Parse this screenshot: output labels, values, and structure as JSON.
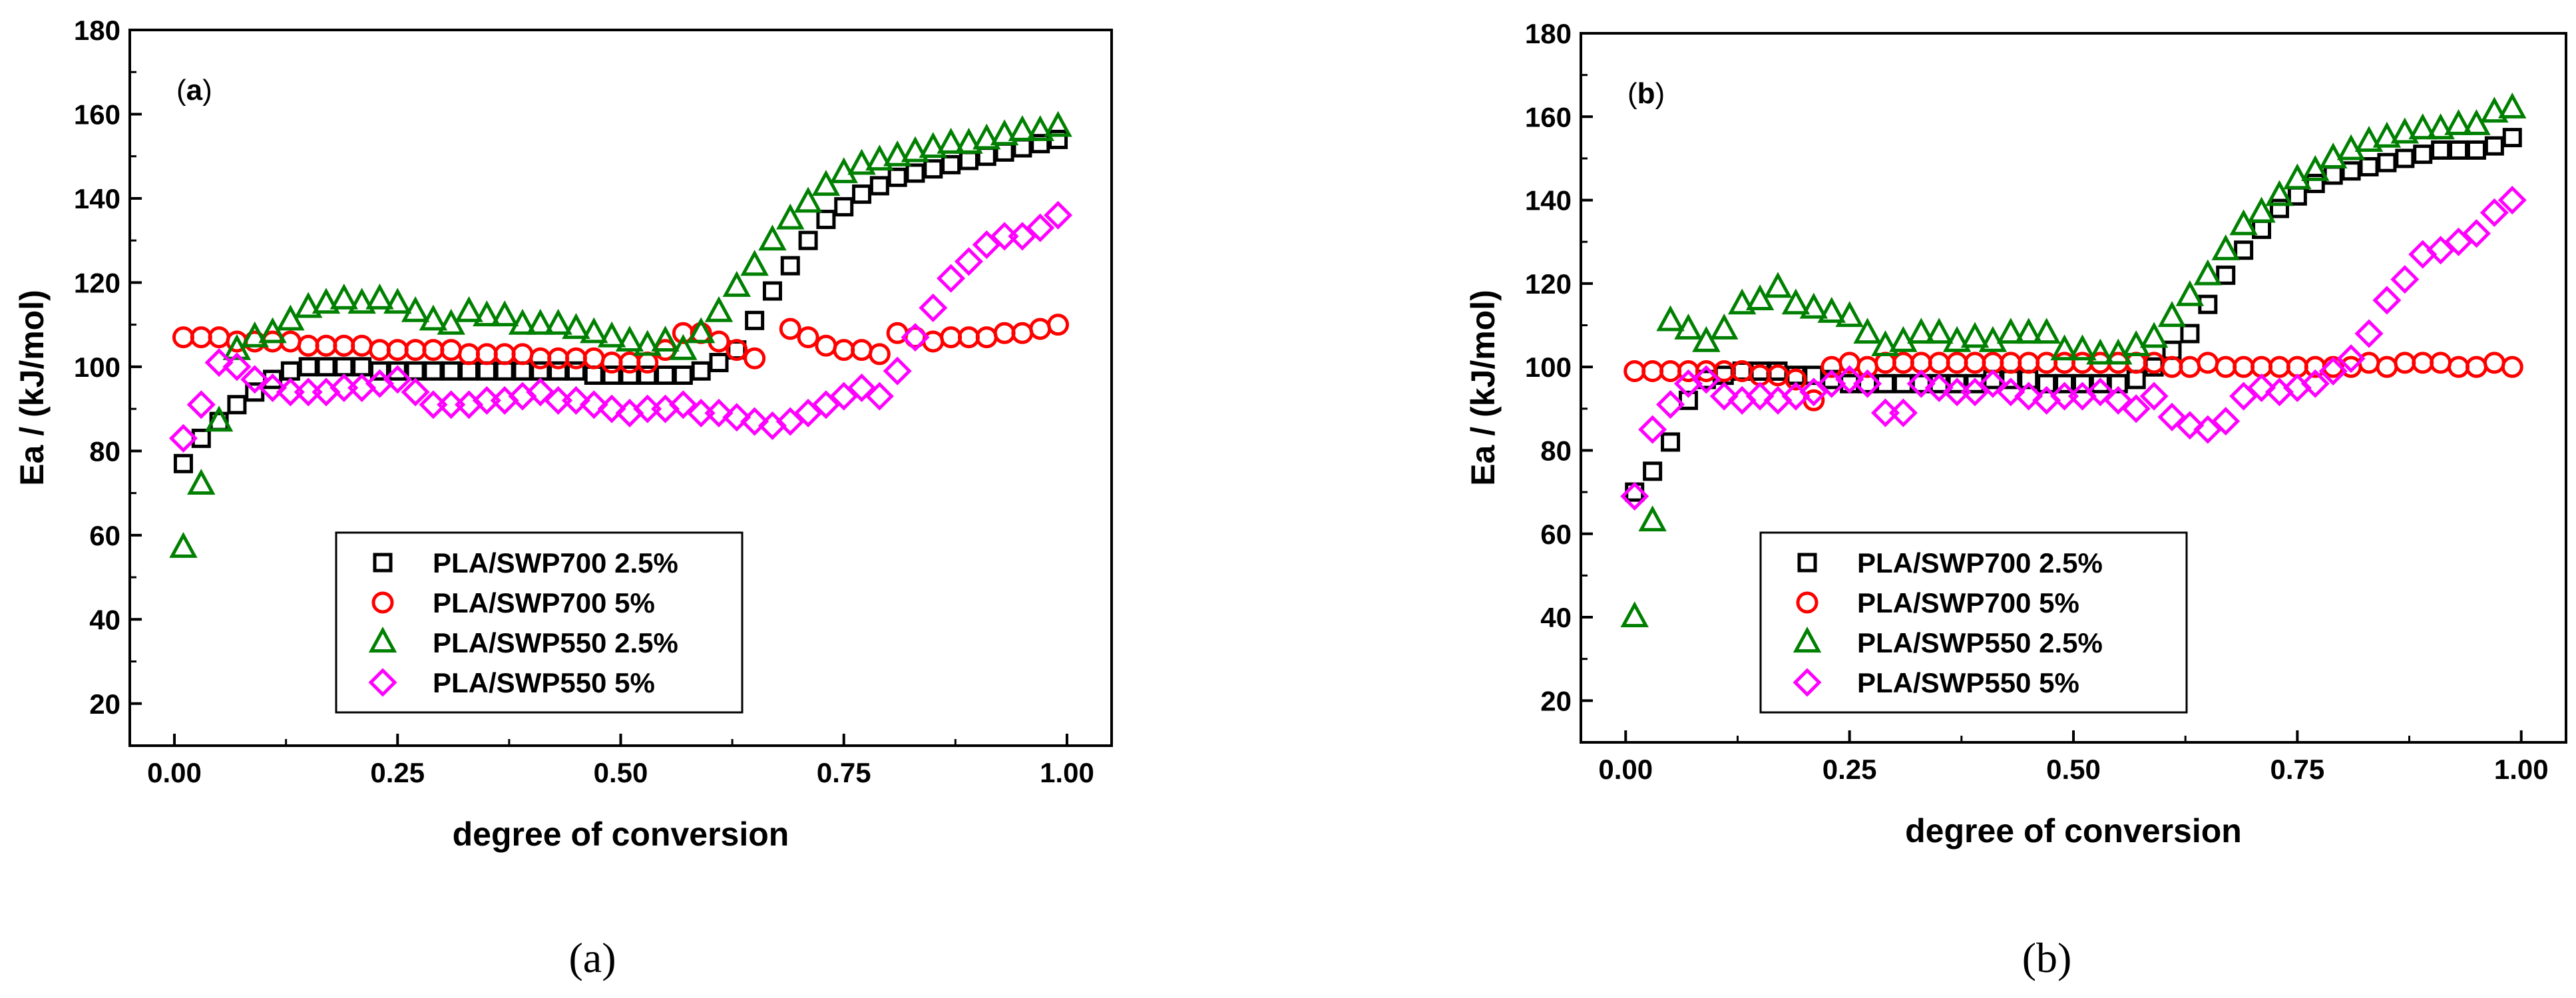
{
  "chart_data": [
    {
      "type": "scatter",
      "panel_label": "(a)",
      "caption": "(a)",
      "xlabel": "degree of conversion",
      "ylabel": "Ea / (kJ/mol)",
      "xlim": [
        -0.05,
        1.05
      ],
      "ylim": [
        10,
        180
      ],
      "xticks": [
        "0.00",
        "0.25",
        "0.50",
        "0.75",
        "1.00"
      ],
      "xtick_values": [
        0,
        0.25,
        0.5,
        0.75,
        1.0
      ],
      "yticks": [
        "20",
        "40",
        "60",
        "80",
        "100",
        "120",
        "140",
        "160",
        "180"
      ],
      "ytick_values": [
        20,
        40,
        60,
        80,
        100,
        120,
        140,
        160,
        180
      ],
      "legend_position": "lower-center",
      "series": [
        {
          "name": "PLA/SWP700 2.5%",
          "marker": "square",
          "color": "#000000",
          "x": [
            0.01,
            0.03,
            0.05,
            0.07,
            0.09,
            0.11,
            0.13,
            0.15,
            0.17,
            0.19,
            0.21,
            0.23,
            0.25,
            0.27,
            0.29,
            0.31,
            0.33,
            0.35,
            0.37,
            0.39,
            0.41,
            0.43,
            0.45,
            0.47,
            0.49,
            0.51,
            0.53,
            0.55,
            0.57,
            0.59,
            0.61,
            0.63,
            0.65,
            0.67,
            0.69,
            0.71,
            0.73,
            0.75,
            0.77,
            0.79,
            0.81,
            0.83,
            0.85,
            0.87,
            0.89,
            0.91,
            0.93,
            0.95,
            0.97,
            0.99
          ],
          "y": [
            77,
            83,
            87,
            91,
            94,
            97,
            99,
            100,
            100,
            100,
            100,
            99,
            99,
            99,
            99,
            99,
            99,
            99,
            99,
            99,
            99,
            99,
            99,
            98,
            98,
            98,
            98,
            98,
            98,
            99,
            101,
            104,
            111,
            118,
            124,
            130,
            135,
            138,
            141,
            143,
            145,
            146,
            147,
            148,
            149,
            150,
            151,
            152,
            153,
            154
          ]
        },
        {
          "name": "PLA/SWP700 5%",
          "marker": "circle",
          "color": "#ff0000",
          "x": [
            0.01,
            0.03,
            0.05,
            0.07,
            0.09,
            0.11,
            0.13,
            0.15,
            0.17,
            0.19,
            0.21,
            0.23,
            0.25,
            0.27,
            0.29,
            0.31,
            0.33,
            0.35,
            0.37,
            0.39,
            0.41,
            0.43,
            0.45,
            0.47,
            0.49,
            0.51,
            0.53,
            0.55,
            0.57,
            0.59,
            0.61,
            0.63,
            0.65,
            0.69,
            0.71,
            0.73,
            0.75,
            0.77,
            0.79,
            0.81,
            0.83,
            0.85,
            0.87,
            0.89,
            0.91,
            0.93,
            0.95,
            0.97,
            0.99
          ],
          "y": [
            107,
            107,
            107,
            106,
            106,
            106,
            106,
            105,
            105,
            105,
            105,
            104,
            104,
            104,
            104,
            104,
            103,
            103,
            103,
            103,
            102,
            102,
            102,
            102,
            101,
            101,
            101,
            104,
            108,
            108,
            106,
            104,
            102,
            109,
            107,
            105,
            104,
            104,
            103,
            108,
            107,
            106,
            107,
            107,
            107,
            108,
            108,
            109,
            110
          ]
        },
        {
          "name": "PLA/SWP550 2.5%",
          "marker": "triangle",
          "color": "#008000",
          "x": [
            0.01,
            0.03,
            0.05,
            0.07,
            0.09,
            0.11,
            0.13,
            0.15,
            0.17,
            0.19,
            0.21,
            0.23,
            0.25,
            0.27,
            0.29,
            0.31,
            0.33,
            0.35,
            0.37,
            0.39,
            0.41,
            0.43,
            0.45,
            0.47,
            0.49,
            0.51,
            0.53,
            0.55,
            0.57,
            0.59,
            0.61,
            0.63,
            0.65,
            0.67,
            0.69,
            0.71,
            0.73,
            0.75,
            0.77,
            0.79,
            0.81,
            0.83,
            0.85,
            0.87,
            0.89,
            0.91,
            0.93,
            0.95,
            0.97,
            0.99
          ],
          "y": [
            57,
            72,
            87,
            104,
            107,
            108,
            111,
            114,
            115,
            116,
            115,
            116,
            115,
            113,
            111,
            110,
            113,
            112,
            112,
            110,
            110,
            110,
            109,
            108,
            107,
            106,
            105,
            106,
            104,
            108,
            113,
            119,
            124,
            130,
            135,
            139,
            143,
            146,
            148,
            149,
            150,
            151,
            152,
            153,
            153,
            154,
            155,
            156,
            156,
            157
          ]
        },
        {
          "name": "PLA/SWP550 5%",
          "marker": "diamond",
          "color": "#ff00ff",
          "x": [
            0.01,
            0.03,
            0.05,
            0.07,
            0.09,
            0.11,
            0.13,
            0.15,
            0.17,
            0.19,
            0.21,
            0.23,
            0.25,
            0.27,
            0.29,
            0.31,
            0.33,
            0.35,
            0.37,
            0.39,
            0.41,
            0.43,
            0.45,
            0.47,
            0.49,
            0.51,
            0.53,
            0.55,
            0.57,
            0.59,
            0.61,
            0.63,
            0.65,
            0.67,
            0.69,
            0.71,
            0.73,
            0.75,
            0.77,
            0.79,
            0.81,
            0.83,
            0.85,
            0.87,
            0.89,
            0.91,
            0.93,
            0.95,
            0.97,
            0.99
          ],
          "y": [
            83,
            91,
            101,
            100,
            97,
            95,
            94,
            94,
            94,
            95,
            95,
            96,
            97,
            94,
            91,
            91,
            91,
            92,
            92,
            93,
            94,
            92,
            92,
            91,
            90,
            89,
            90,
            90,
            91,
            89,
            89,
            88,
            87,
            86,
            87,
            89,
            91,
            93,
            95,
            93,
            99,
            107,
            114,
            121,
            125,
            129,
            131,
            131,
            133,
            136
          ]
        }
      ]
    },
    {
      "type": "scatter",
      "panel_label": "(b)",
      "caption": "(b)",
      "xlabel": "degree of conversion",
      "ylabel": "Ea / (kJ/mol)",
      "xlim": [
        -0.05,
        1.05
      ],
      "ylim": [
        10,
        180
      ],
      "xticks": [
        "0.00",
        "0.25",
        "0.50",
        "0.75",
        "1.00"
      ],
      "xtick_values": [
        0,
        0.25,
        0.5,
        0.75,
        1.0
      ],
      "yticks": [
        "20",
        "40",
        "60",
        "80",
        "100",
        "120",
        "140",
        "160",
        "180"
      ],
      "ytick_values": [
        20,
        40,
        60,
        80,
        100,
        120,
        140,
        160,
        180
      ],
      "legend_position": "lower-center",
      "series": [
        {
          "name": "PLA/SWP700 2.5%",
          "marker": "square",
          "color": "#000000",
          "x": [
            0.01,
            0.03,
            0.05,
            0.07,
            0.09,
            0.11,
            0.13,
            0.15,
            0.17,
            0.19,
            0.21,
            0.23,
            0.25,
            0.27,
            0.29,
            0.31,
            0.33,
            0.35,
            0.37,
            0.39,
            0.41,
            0.43,
            0.45,
            0.47,
            0.49,
            0.51,
            0.53,
            0.55,
            0.57,
            0.59,
            0.61,
            0.63,
            0.65,
            0.67,
            0.69,
            0.71,
            0.73,
            0.75,
            0.77,
            0.79,
            0.81,
            0.83,
            0.85,
            0.87,
            0.89,
            0.91,
            0.93,
            0.95,
            0.97,
            0.99
          ],
          "y": [
            70,
            75,
            82,
            92,
            97,
            98,
            99,
            99,
            99,
            98,
            98,
            97,
            96,
            96,
            96,
            96,
            96,
            96,
            96,
            96,
            97,
            97,
            97,
            96,
            96,
            96,
            96,
            96,
            97,
            100,
            104,
            108,
            115,
            122,
            128,
            133,
            138,
            141,
            144,
            146,
            147,
            148,
            149,
            150,
            151,
            152,
            152,
            152,
            153,
            155
          ]
        },
        {
          "name": "PLA/SWP700 5%",
          "marker": "circle",
          "color": "#ff0000",
          "x": [
            0.01,
            0.03,
            0.05,
            0.07,
            0.09,
            0.11,
            0.13,
            0.15,
            0.17,
            0.19,
            0.21,
            0.23,
            0.25,
            0.27,
            0.29,
            0.31,
            0.33,
            0.35,
            0.37,
            0.39,
            0.41,
            0.43,
            0.45,
            0.47,
            0.49,
            0.51,
            0.53,
            0.55,
            0.57,
            0.59,
            0.61,
            0.63,
            0.65,
            0.67,
            0.69,
            0.71,
            0.73,
            0.75,
            0.77,
            0.79,
            0.81,
            0.83,
            0.85,
            0.87,
            0.89,
            0.91,
            0.93,
            0.95,
            0.97,
            0.99
          ],
          "y": [
            99,
            99,
            99,
            99,
            99,
            99,
            99,
            98,
            98,
            97,
            92,
            100,
            101,
            100,
            101,
            101,
            101,
            101,
            101,
            101,
            101,
            101,
            101,
            101,
            101,
            101,
            101,
            101,
            101,
            101,
            100,
            100,
            101,
            100,
            100,
            100,
            100,
            100,
            100,
            100,
            100,
            101,
            100,
            101,
            101,
            101,
            100,
            100,
            101,
            100
          ]
        },
        {
          "name": "PLA/SWP550 2.5%",
          "marker": "triangle",
          "color": "#008000",
          "x": [
            0.01,
            0.03,
            0.05,
            0.07,
            0.09,
            0.11,
            0.13,
            0.15,
            0.17,
            0.19,
            0.21,
            0.23,
            0.25,
            0.27,
            0.29,
            0.31,
            0.33,
            0.35,
            0.37,
            0.39,
            0.41,
            0.43,
            0.45,
            0.47,
            0.49,
            0.51,
            0.53,
            0.55,
            0.57,
            0.59,
            0.61,
            0.63,
            0.65,
            0.67,
            0.69,
            0.71,
            0.73,
            0.75,
            0.77,
            0.79,
            0.81,
            0.83,
            0.85,
            0.87,
            0.89,
            0.91,
            0.93,
            0.95,
            0.97,
            0.99
          ],
          "y": [
            40,
            63,
            111,
            109,
            106,
            109,
            115,
            116,
            119,
            115,
            114,
            113,
            112,
            108,
            105,
            106,
            108,
            108,
            106,
            107,
            106,
            108,
            108,
            108,
            104,
            104,
            103,
            103,
            105,
            107,
            112,
            117,
            122,
            128,
            134,
            137,
            141,
            145,
            147,
            150,
            152,
            154,
            155,
            156,
            157,
            157,
            158,
            158,
            161,
            162
          ]
        },
        {
          "name": "PLA/SWP550 5%",
          "marker": "diamond",
          "color": "#ff00ff",
          "x": [
            0.01,
            0.03,
            0.05,
            0.07,
            0.09,
            0.11,
            0.13,
            0.15,
            0.17,
            0.19,
            0.21,
            0.23,
            0.25,
            0.27,
            0.29,
            0.31,
            0.33,
            0.35,
            0.37,
            0.39,
            0.41,
            0.43,
            0.45,
            0.47,
            0.49,
            0.51,
            0.53,
            0.55,
            0.57,
            0.59,
            0.61,
            0.63,
            0.65,
            0.67,
            0.69,
            0.71,
            0.73,
            0.75,
            0.77,
            0.79,
            0.81,
            0.83,
            0.85,
            0.87,
            0.89,
            0.91,
            0.93,
            0.95,
            0.97,
            0.99
          ],
          "y": [
            69,
            85,
            91,
            96,
            97,
            93,
            92,
            93,
            92,
            93,
            94,
            96,
            97,
            96,
            89,
            89,
            96,
            95,
            94,
            94,
            96,
            94,
            93,
            92,
            93,
            93,
            94,
            92,
            90,
            93,
            88,
            86,
            85,
            87,
            93,
            95,
            94,
            95,
            96,
            99,
            102,
            108,
            116,
            121,
            127,
            128,
            130,
            132,
            137,
            140
          ]
        }
      ]
    }
  ]
}
